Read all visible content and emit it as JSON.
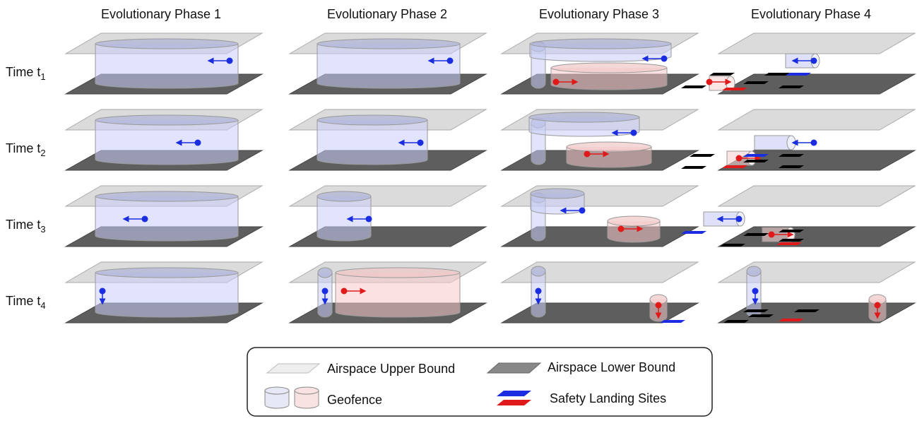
{
  "columns": [
    "Evolutionary Phase 1",
    "Evolutionary Phase 2",
    "Evolutionary Phase 3",
    "Evolutionary Phase 4"
  ],
  "rows": [
    {
      "label": "Time t",
      "sub": "1"
    },
    {
      "label": "Time t",
      "sub": "2"
    },
    {
      "label": "Time t",
      "sub": "3"
    },
    {
      "label": "Time t",
      "sub": "4"
    }
  ],
  "legend": {
    "upper": "Airspace Upper Bound",
    "lower": "Airspace Lower Bound",
    "geofence": "Geofence",
    "landing": "Safety Landing Sites"
  }
}
